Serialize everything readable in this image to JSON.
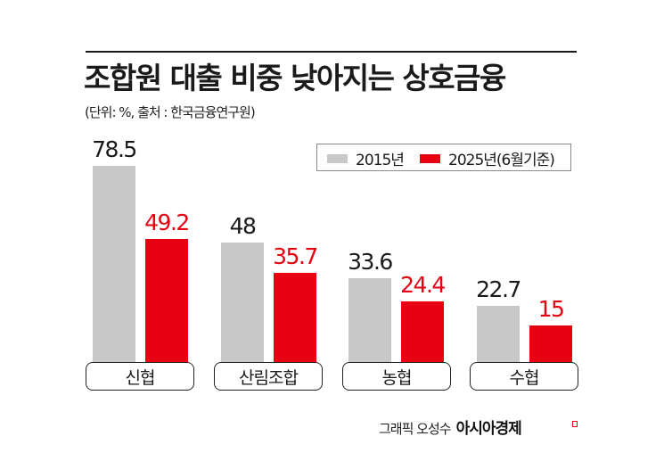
{
  "header": {
    "title": "조합원 대출 비중 낮아지는 상호금융",
    "subtitle": "(단위: %, 출처 : 한국금융연구원)"
  },
  "legend": {
    "items": [
      {
        "label": "2015년",
        "color": "#c8c8c8"
      },
      {
        "label": "2025년(6월기준)",
        "color": "#e60012"
      }
    ]
  },
  "colors": {
    "series_2015": "#c8c8c8",
    "series_2025": "#e60012",
    "value_2015_text": "#1a1a1a",
    "value_2025_text": "#e60012"
  },
  "chart_data": {
    "type": "bar",
    "title": "조합원 대출 비중 낮아지는 상호금융",
    "subtitle": "(단위: %, 출처 : 한국금융연구원)",
    "xlabel": "",
    "ylabel": "%",
    "categories": [
      "신협",
      "산림조합",
      "농협",
      "수협"
    ],
    "series": [
      {
        "name": "2015년",
        "values": [
          78.5,
          48,
          33.6,
          22.7
        ],
        "labels": [
          "78.5",
          "48",
          "33.6",
          "22.7"
        ]
      },
      {
        "name": "2025년(6월기준)",
        "values": [
          49.2,
          35.7,
          24.4,
          15
        ],
        "labels": [
          "49.2",
          "35.7",
          "24.4",
          "15"
        ]
      }
    ],
    "ylim": [
      0,
      80
    ],
    "grid": false,
    "legend_position": "top-right",
    "source": "한국금융연구원"
  },
  "footer": {
    "credit": "그래픽 오성수",
    "brand": "아시아경제"
  }
}
